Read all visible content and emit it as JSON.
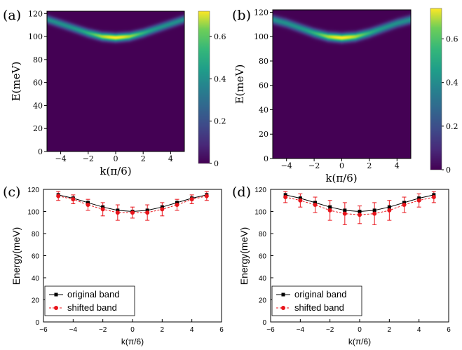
{
  "panels": [
    {
      "label": "(a)"
    },
    {
      "label": "(b)"
    },
    {
      "label": "(c)"
    },
    {
      "label": "(d)"
    }
  ],
  "chart_data": [
    {
      "id": "a",
      "type": "heatmap",
      "xlabel": "k(π/6)",
      "ylabel": "E(meV)",
      "xlim": [
        -5,
        5
      ],
      "ylim": [
        0,
        122
      ],
      "xticks": [
        -4,
        -2,
        0,
        2,
        4
      ],
      "yticks": [
        0,
        20,
        40,
        60,
        80,
        100,
        120
      ],
      "band": {
        "k": [
          -5,
          -4,
          -3,
          -2,
          -1,
          0,
          1,
          2,
          3,
          4,
          5
        ],
        "E": [
          115,
          111,
          107,
          103,
          100,
          99,
          100,
          103,
          107,
          111,
          115
        ]
      },
      "colorbar": {
        "min": 0,
        "max": 0.72,
        "ticks": [
          0,
          0.2,
          0.4,
          0.6
        ]
      }
    },
    {
      "id": "b",
      "type": "heatmap",
      "xlabel": "k(π/6)",
      "ylabel": "E(meV)",
      "xlim": [
        -5,
        5
      ],
      "ylim": [
        0,
        122
      ],
      "xticks": [
        -4,
        -2,
        0,
        2,
        4
      ],
      "yticks": [
        0,
        20,
        40,
        60,
        80,
        100,
        120
      ],
      "band": {
        "k": [
          -5,
          -4,
          -3,
          -2,
          -1,
          0,
          1,
          2,
          3,
          4,
          5
        ],
        "E": [
          114,
          111,
          107,
          103,
          100,
          99,
          100,
          103,
          107,
          111,
          114
        ]
      },
      "colorbar": {
        "min": 0,
        "max": 0.74,
        "ticks": [
          0,
          0.2,
          0.4,
          0.6
        ]
      }
    },
    {
      "id": "c",
      "type": "line",
      "xlabel": "k(π/6)",
      "ylabel": "Energy(meV)",
      "xlim": [
        -6,
        6
      ],
      "ylim": [
        0,
        120
      ],
      "xticks": [
        -6,
        -4,
        -2,
        0,
        2,
        4,
        6
      ],
      "yticks": [
        0,
        20,
        40,
        60,
        80,
        100,
        120
      ],
      "x": [
        -5,
        -4,
        -3,
        -2,
        -1,
        0,
        1,
        2,
        3,
        4,
        5
      ],
      "series": [
        {
          "name": "original band",
          "values": [
            115,
            112,
            108,
            104,
            101,
            100,
            101,
            104,
            108,
            112,
            115
          ]
        },
        {
          "name": "shifted band",
          "values": [
            114,
            111,
            106,
            102,
            99,
            99,
            99,
            102,
            106,
            111,
            114
          ],
          "err": [
            4,
            4,
            5,
            6,
            7,
            5,
            7,
            6,
            5,
            4,
            4
          ]
        }
      ]
    },
    {
      "id": "d",
      "type": "line",
      "xlabel": "k(π/6)",
      "ylabel": "Energy(meV)",
      "xlim": [
        -6,
        6
      ],
      "ylim": [
        0,
        120
      ],
      "xticks": [
        -6,
        -4,
        -2,
        0,
        2,
        4,
        6
      ],
      "yticks": [
        0,
        20,
        40,
        60,
        80,
        100,
        120
      ],
      "x": [
        -5,
        -4,
        -3,
        -2,
        -1,
        0,
        1,
        2,
        3,
        4,
        5
      ],
      "series": [
        {
          "name": "original band",
          "values": [
            115,
            112,
            108,
            104,
            101,
            100,
            101,
            104,
            108,
            112,
            115
          ]
        },
        {
          "name": "shifted band",
          "values": [
            113,
            110,
            106,
            101,
            98,
            97,
            98,
            101,
            106,
            110,
            113
          ],
          "err": [
            5,
            6,
            7,
            9,
            10,
            8,
            10,
            9,
            7,
            6,
            5
          ]
        }
      ]
    }
  ],
  "colors": {
    "original": "#000000",
    "shifted": "#e8141b",
    "viridis_low": "#440154",
    "viridis_high": "#fde725"
  }
}
